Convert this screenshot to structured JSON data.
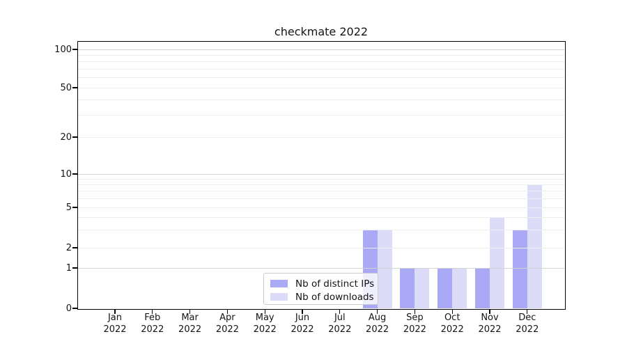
{
  "chart_data": {
    "type": "bar",
    "title": "checkmate 2022",
    "categories": [
      "Jan",
      "Feb",
      "Mar",
      "Apr",
      "May",
      "Jun",
      "Jul",
      "Aug",
      "Sep",
      "Oct",
      "Nov",
      "Dec"
    ],
    "year_label": "2022",
    "series": [
      {
        "name": "Nb of distinct IPs",
        "color": "#a9a9f5",
        "values": [
          0,
          0,
          0,
          0,
          0,
          0,
          0,
          3,
          1,
          1,
          1,
          3
        ]
      },
      {
        "name": "Nb of downloads",
        "color": "#dcdcf8",
        "values": [
          0,
          0,
          0,
          0,
          0,
          0,
          0,
          3,
          1,
          1,
          4,
          8
        ]
      }
    ],
    "yticks": [
      0,
      1,
      2,
      5,
      10,
      20,
      50,
      100
    ],
    "ylim": [
      0,
      115
    ],
    "scale": "symlog",
    "grid": {
      "major_values": [
        1,
        10,
        100
      ],
      "minor_values": [
        2,
        3,
        4,
        5,
        6,
        7,
        8,
        9,
        20,
        30,
        40,
        50,
        60,
        70,
        80,
        90
      ]
    },
    "legend_position": "bottom-center-inside"
  }
}
